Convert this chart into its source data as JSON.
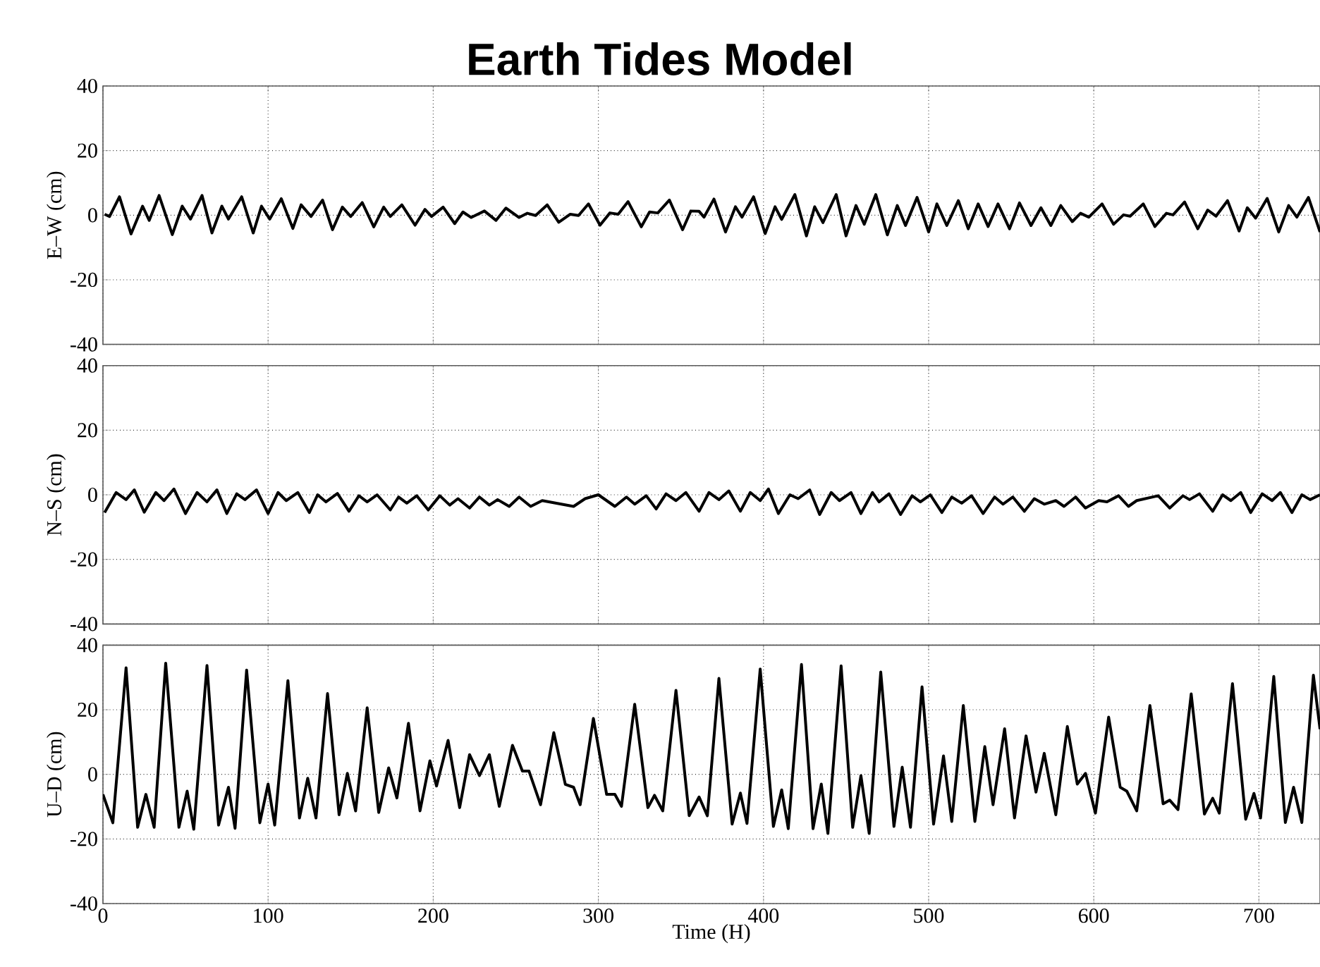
{
  "chart_data": [
    {
      "type": "line",
      "title": "Earth Tides Model",
      "ylabel": "E–W (cm)",
      "color": "#000000",
      "grid": true,
      "tick_labels": "y",
      "xlim": [
        0,
        737
      ],
      "ylim": [
        -40,
        40
      ],
      "xticks": [
        0,
        100,
        200,
        300,
        400,
        500,
        600,
        700
      ],
      "yticks": [
        -40,
        -20,
        0,
        20,
        40
      ],
      "x": [
        1,
        4,
        10,
        17,
        24,
        28,
        34,
        42,
        48,
        53,
        60,
        66,
        72,
        76,
        84,
        91,
        96,
        101,
        108,
        115,
        120,
        126,
        133,
        139,
        145,
        150,
        157,
        164,
        170,
        174,
        181,
        189,
        195,
        199,
        206,
        213,
        218,
        223,
        231,
        238,
        244,
        252,
        257,
        262,
        269,
        276,
        283,
        288,
        294,
        301,
        307,
        312,
        318,
        326,
        331,
        336,
        343,
        351,
        356,
        361,
        364,
        370,
        377,
        383,
        387,
        394,
        401,
        407,
        411,
        419,
        426,
        431,
        436,
        444,
        450,
        456,
        461,
        468,
        475,
        481,
        486,
        493,
        500,
        505,
        511,
        518,
        524,
        530,
        536,
        542,
        549,
        555,
        562,
        568,
        574,
        580,
        587,
        592,
        597,
        605,
        612,
        618,
        622,
        630,
        637,
        644,
        648,
        655,
        663,
        669,
        674,
        681,
        688,
        693,
        698,
        705,
        712,
        718,
        723,
        730,
        737
      ],
      "values": [
        0.3,
        -0.4,
        5.7,
        -5.8,
        2.8,
        -1.6,
        6.1,
        -6,
        2.8,
        -1.2,
        6.1,
        -5.5,
        2.8,
        -1.2,
        5.7,
        -5.5,
        2.8,
        -1.2,
        5.1,
        -4.1,
        3.2,
        -0.4,
        4.7,
        -4.5,
        2.5,
        -0.4,
        3.9,
        -3.6,
        2.5,
        -0.4,
        3.2,
        -3.1,
        1.8,
        -0.4,
        2.5,
        -2.6,
        1,
        -0.7,
        1.3,
        -1.6,
        2.2,
        -0.7,
        0.6,
        -0.1,
        3.2,
        -2.2,
        0.3,
        -0.1,
        3.5,
        -3.1,
        0.7,
        0.3,
        4.2,
        -3.6,
        1,
        0.7,
        4.7,
        -4.5,
        1.3,
        1.2,
        -0.6,
        5,
        -5.2,
        2.6,
        -0.6,
        5.7,
        -5.7,
        2.6,
        -1.3,
        6.4,
        -6.4,
        2.6,
        -2.3,
        6.4,
        -6.4,
        3,
        -2.8,
        6.4,
        -6.1,
        3,
        -3.2,
        5.5,
        -5.2,
        3.5,
        -3.2,
        4.5,
        -4.2,
        3.5,
        -3.5,
        3.5,
        -4.2,
        3.8,
        -3.2,
        2.3,
        -3.2,
        3,
        -2,
        0.6,
        -0.6,
        3.5,
        -2.8,
        0.1,
        -0.3,
        3.5,
        -3.5,
        0.6,
        0.1,
        4.1,
        -4.2,
        1.6,
        -0.3,
        4.5,
        -4.9,
        2.3,
        -0.9,
        5.2,
        -5.2,
        3,
        -0.6,
        5.5,
        -5.2
      ]
    },
    {
      "type": "line",
      "ylabel": "N–S (cm)",
      "color": "#000000",
      "grid": true,
      "tick_labels": "y",
      "xlim": [
        0,
        737
      ],
      "ylim": [
        -40,
        40
      ],
      "xticks": [
        0,
        100,
        200,
        300,
        400,
        500,
        600,
        700
      ],
      "yticks": [
        -40,
        -20,
        0,
        20,
        40
      ],
      "x": [
        1,
        8,
        14,
        19,
        25,
        32,
        37,
        43,
        50,
        57,
        63,
        69,
        75,
        81,
        86,
        93,
        100,
        106,
        111,
        118,
        125,
        130,
        135,
        142,
        149,
        155,
        160,
        166,
        174,
        179,
        184,
        190,
        197,
        204,
        210,
        215,
        222,
        228,
        234,
        239,
        246,
        252,
        259,
        266,
        285,
        292,
        300,
        310,
        317,
        322,
        329,
        335,
        341,
        347,
        353,
        361,
        367,
        373,
        379,
        386,
        392,
        398,
        403,
        409,
        416,
        421,
        428,
        434,
        441,
        446,
        453,
        459,
        466,
        470,
        476,
        483,
        490,
        495,
        501,
        508,
        514,
        520,
        526,
        533,
        540,
        545,
        551,
        558,
        564,
        570,
        577,
        582,
        589,
        595,
        603,
        608,
        615,
        621,
        626,
        639,
        646,
        654,
        658,
        664,
        672,
        678,
        683,
        689,
        695,
        702,
        708,
        713,
        720,
        726,
        731,
        737
      ],
      "values": [
        -5.5,
        0.7,
        -1.5,
        1.5,
        -5.4,
        0.7,
        -1.8,
        1.8,
        -5.8,
        0.7,
        -2.2,
        1.5,
        -5.8,
        0.3,
        -1.5,
        1.5,
        -5.8,
        0.7,
        -1.8,
        0.7,
        -5.5,
        0,
        -2.2,
        0.4,
        -5.1,
        -0.3,
        -2.2,
        0,
        -4.7,
        -0.7,
        -2.6,
        -0.3,
        -4.7,
        -0.3,
        -3.2,
        -1.2,
        -4.1,
        -0.7,
        -3.2,
        -1.5,
        -3.6,
        -0.7,
        -3.6,
        -1.8,
        -3.6,
        -1.2,
        0,
        -3.6,
        -0.7,
        -2.9,
        -0.3,
        -4.4,
        0.3,
        -1.8,
        0.7,
        -5.1,
        0.7,
        -1.5,
        1.2,
        -5.1,
        0.7,
        -1.8,
        1.8,
        -5.8,
        0,
        -1.2,
        1.5,
        -6.1,
        0.7,
        -1.8,
        0.7,
        -5.8,
        0.7,
        -2.2,
        0.3,
        -6.1,
        -0.3,
        -2.2,
        0,
        -5.5,
        -0.7,
        -2.6,
        -0.3,
        -5.8,
        -0.7,
        -2.9,
        -0.7,
        -5.1,
        -1.2,
        -2.9,
        -1.8,
        -3.6,
        -0.7,
        -4.1,
        -1.8,
        -2.2,
        -0.3,
        -3.6,
        -1.8,
        -0.3,
        -4.1,
        -0.3,
        -1.5,
        0.3,
        -5.1,
        0,
        -1.8,
        0.7,
        -5.5,
        0.3,
        -1.8,
        0.7,
        -5.5,
        0,
        -1.5,
        0
      ]
    },
    {
      "type": "line",
      "ylabel": "U–D (cm)",
      "xlabel": "Time (H)",
      "color": "#000000",
      "grid": true,
      "xlim": [
        0,
        737
      ],
      "ylim": [
        -40,
        40
      ],
      "xticks": [
        0,
        100,
        200,
        300,
        400,
        500,
        600,
        700
      ],
      "yticks": [
        -40,
        -20,
        0,
        20,
        40
      ],
      "x": [
        0,
        6,
        14,
        21,
        26,
        31,
        38,
        46,
        51,
        55,
        63,
        70,
        76,
        80,
        87,
        95,
        100,
        104,
        112,
        119,
        124,
        129,
        136,
        143,
        148,
        153,
        160,
        167,
        173,
        178,
        185,
        192,
        198,
        202,
        209,
        216,
        222,
        228,
        234,
        240,
        248,
        254,
        258,
        265,
        273,
        280,
        285,
        289,
        297,
        305,
        310,
        314,
        322,
        330,
        334,
        339,
        347,
        355,
        361,
        366,
        373,
        381,
        386,
        390,
        398,
        406,
        411,
        415,
        423,
        430,
        435,
        439,
        447,
        454,
        459,
        464,
        471,
        479,
        484,
        489,
        496,
        503,
        509,
        514,
        521,
        528,
        534,
        539,
        546,
        552,
        559,
        565,
        570,
        577,
        584,
        590,
        595,
        601,
        609,
        616,
        620,
        626,
        634,
        642,
        646,
        651,
        659,
        667,
        672,
        676,
        684,
        692,
        697,
        701,
        709,
        716,
        721,
        726,
        733,
        737
      ],
      "values": [
        -6.2,
        -15,
        33,
        -16.4,
        -6.2,
        -16.4,
        34.4,
        -16.4,
        -5.2,
        -17,
        33.7,
        -15.7,
        -4,
        -16.7,
        32.3,
        -15,
        -3,
        -15.7,
        29,
        -13.5,
        -1.2,
        -13.5,
        25,
        -12.5,
        0.3,
        -11.3,
        20.6,
        -11.8,
        2,
        -7.3,
        15.8,
        -11.3,
        4.2,
        -3.6,
        10.5,
        -10.3,
        6.1,
        -0.4,
        6.1,
        -9.9,
        9,
        1,
        1,
        -9.4,
        12.9,
        -3.1,
        -4,
        -9.4,
        17.3,
        -6.2,
        -6.2,
        -9.9,
        21.7,
        -10.3,
        -6.5,
        -11.3,
        26,
        -12.8,
        -7,
        -12.8,
        29.7,
        -15.4,
        -5.8,
        -15.2,
        32.6,
        -16.1,
        -4.8,
        -16.8,
        34,
        -16.8,
        -3,
        -18.3,
        33.6,
        -16.4,
        -0.4,
        -18.3,
        31.7,
        -16.1,
        2.2,
        -16.4,
        27.1,
        -15.4,
        5.7,
        -14.6,
        21.3,
        -14.6,
        8.6,
        -9.4,
        14.1,
        -13.5,
        11.9,
        -5.5,
        6.5,
        -12.5,
        14.8,
        -3,
        0.3,
        -12,
        17.7,
        -4,
        -5.2,
        -11.3,
        21.3,
        -9.1,
        -8,
        -10.9,
        24.9,
        -12.3,
        -7.4,
        -12,
        28.1,
        -13.9,
        -5.9,
        -13.5,
        30.3,
        -14.9,
        -4,
        -14.9,
        30.7,
        14
      ]
    }
  ]
}
